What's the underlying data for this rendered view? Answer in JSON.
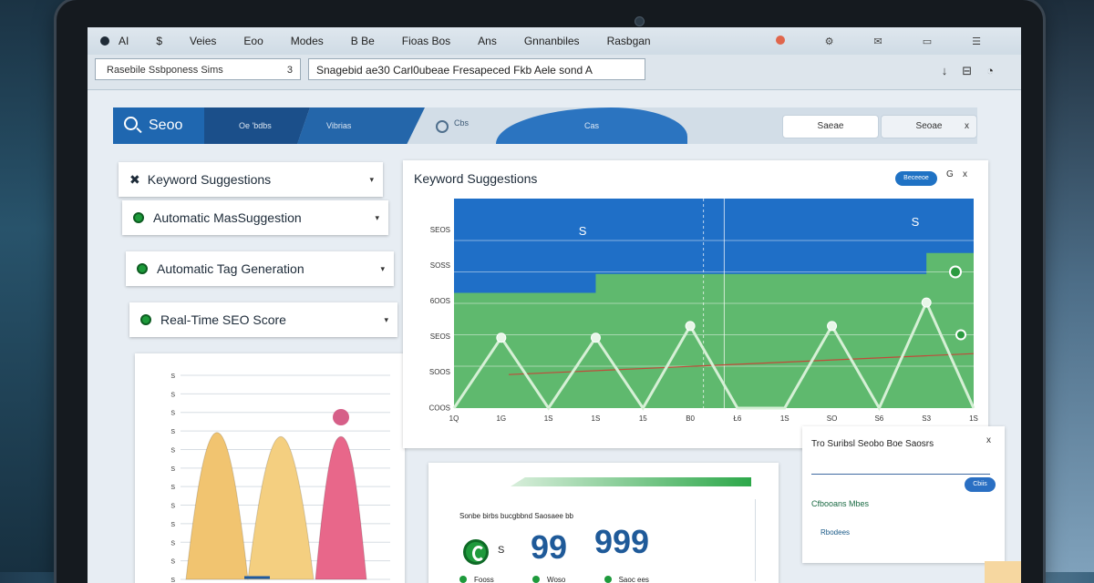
{
  "menubar": {
    "items": [
      "AI",
      "$",
      "Veies",
      "Eoo",
      "Modes",
      "B Be",
      "Fioas Bos",
      "Ans",
      "Gnnanbiles",
      "Rasbgan"
    ]
  },
  "address": {
    "left_field": "Rasebile Ssbponess Sims",
    "left_close": "3",
    "right_field": "Snagebid ae30 Carl0ubeae Fresapeced Fkb Aele sond A"
  },
  "app_header": {
    "brand": "Seoo",
    "tab1": "Oe 'bdbs",
    "tab2": "Vibrias",
    "label3": "Cbs",
    "wave_label": "Cas",
    "button1": "Saeae",
    "button2": "Seoae",
    "button2_close": "x"
  },
  "features": [
    {
      "label": "Keyword Suggestions"
    },
    {
      "label": "Automatic MasSuggestion"
    },
    {
      "label": "Automatic Tag Generation"
    },
    {
      "label": "Real-Time SEO Score"
    }
  ],
  "main_chart": {
    "title": "Keyword Suggestions",
    "pill": "Beceeoe",
    "pill_symbol": "G",
    "pill_close": "x",
    "annotation_left": "S",
    "annotation_right": "S",
    "colors": {
      "blue": "#1f6fc7",
      "green": "#5fb96e",
      "line": "#d6f0d6",
      "divider": "#c24a3a"
    }
  },
  "chart_data": [
    {
      "type": "area",
      "title": "Keyword Suggestions",
      "y_ticks": [
        "SEOS",
        "SOSS",
        "6OOS",
        "SEOS",
        "SOOS",
        "COOS"
      ],
      "x_ticks": [
        "1Q",
        "1G",
        "1S",
        "1S",
        "15",
        "B0",
        "Ł6",
        "1S",
        "SO",
        "S6",
        "S3",
        "1S"
      ],
      "x": [
        0,
        1,
        2,
        3,
        4,
        5,
        6,
        7,
        8,
        9,
        10,
        11
      ],
      "series": [
        {
          "values": [
            55,
            55,
            55,
            64,
            64,
            64,
            64,
            64,
            64,
            64,
            74,
            74
          ]
        },
        {
          "values": [
            100,
            100,
            100,
            100,
            100,
            100,
            100,
            100,
            100,
            100,
            100,
            100
          ]
        },
        {
          "values": [
            0,
            12,
            0,
            12,
            0,
            14,
            0,
            0,
            14,
            0,
            18,
            0
          ]
        }
      ],
      "ylim": [
        0,
        100
      ]
    },
    {
      "type": "area",
      "y_ticks": [
        "S",
        "S",
        "S",
        "S",
        "S",
        "S",
        "S",
        "S",
        "S",
        "S",
        "S",
        "S"
      ],
      "series": [
        {
          "color": "#f1c470",
          "peak": 0.72
        },
        {
          "color": "#f4cf80",
          "peak": 0.7
        },
        {
          "color": "#e8678a",
          "peak": 0.7
        }
      ]
    }
  ],
  "score_panel": {
    "header": "Sonbe birbs bucgbbnd Saosaee bb",
    "s_label": "S",
    "num_a": "99",
    "num_b": "999",
    "legend": [
      "Fooss",
      "Woso",
      "Saoc ees"
    ]
  },
  "right_panel": {
    "title": "Tro Suribsl Seobo Boe Saosrs",
    "close": "x",
    "button": "Cbiis",
    "sub": "Cfbooans   Mbes",
    "link": "Rbodees"
  }
}
